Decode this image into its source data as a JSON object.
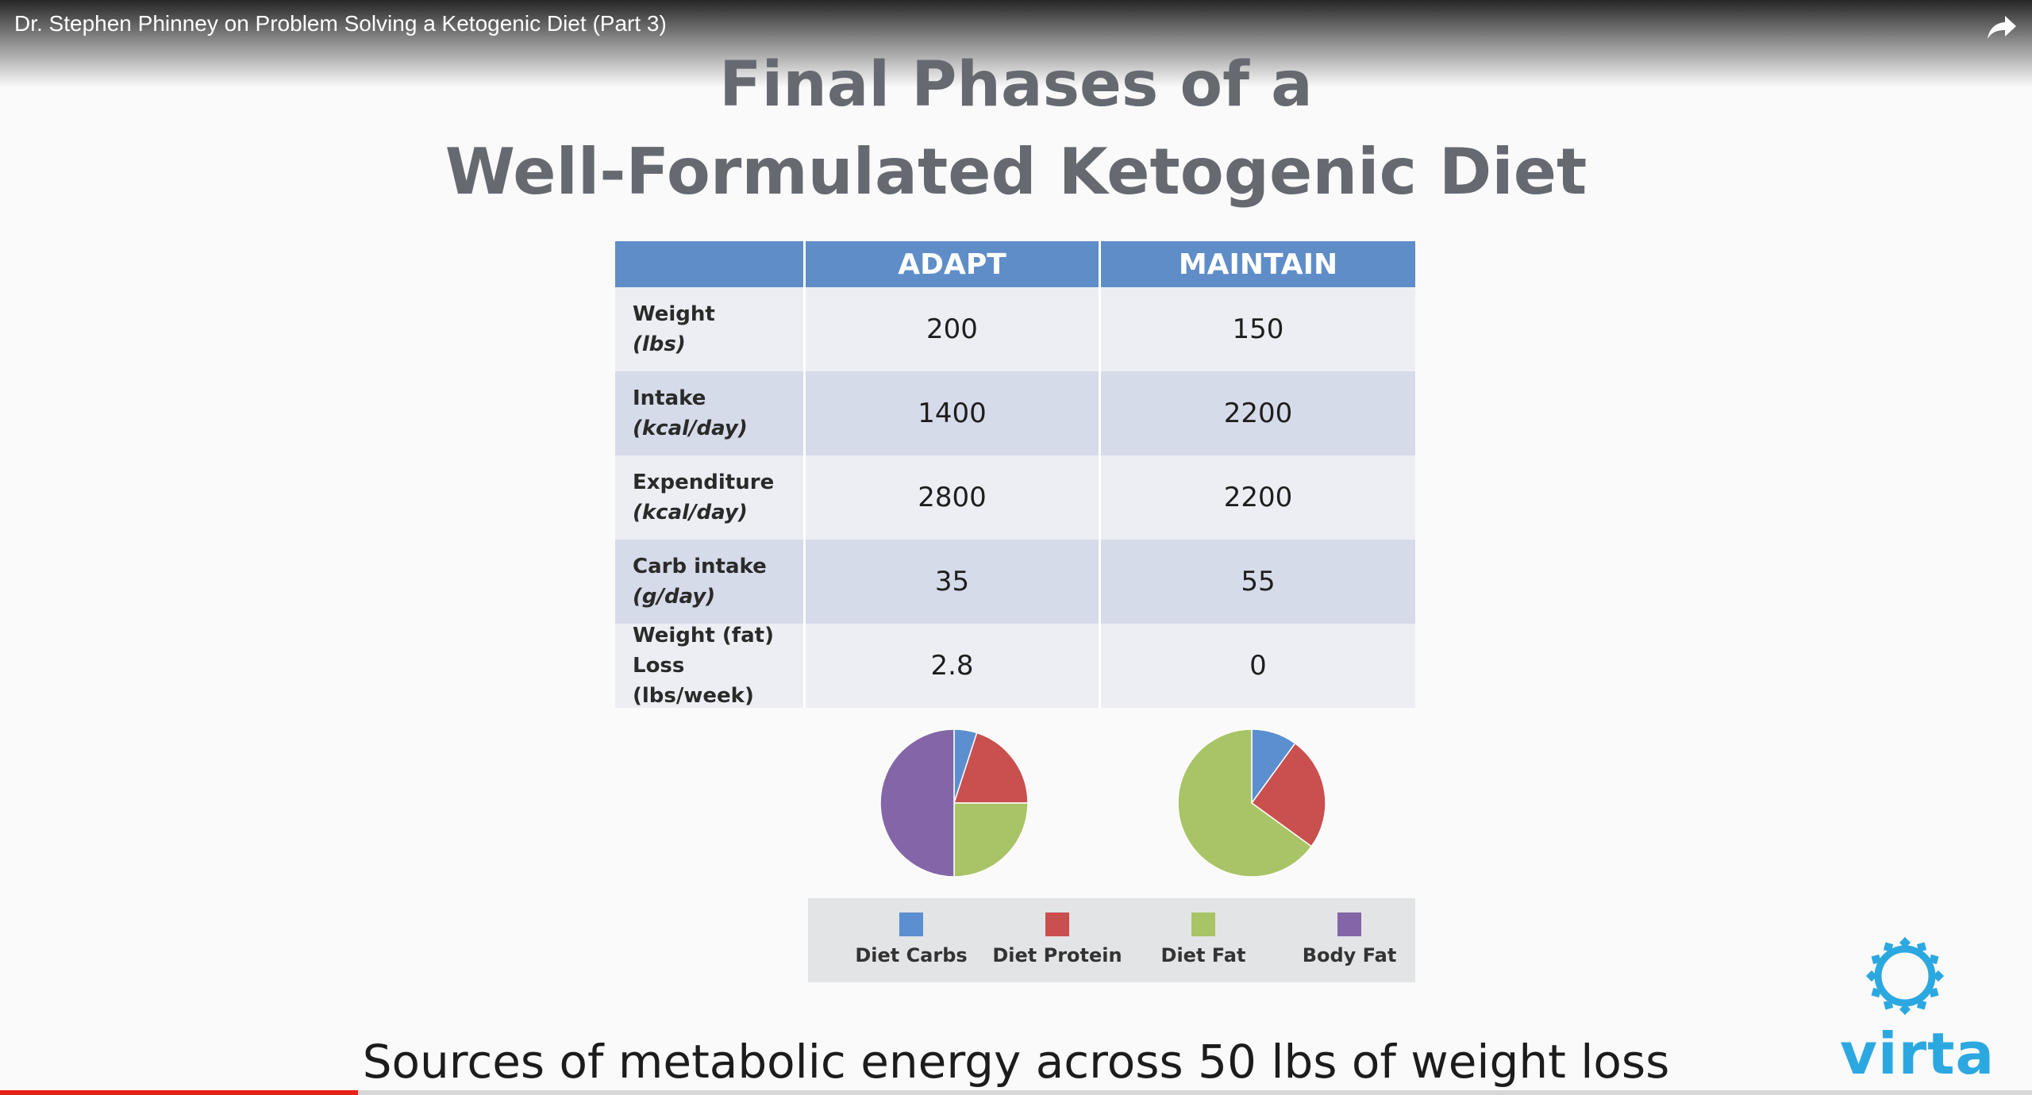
{
  "video": {
    "title": "Dr. Stephen Phinney on Problem Solving a Ketogenic Diet (Part 3)",
    "share_icon": "share-arrow-icon",
    "progress_fraction": 0.176
  },
  "slide": {
    "title_line1": "Final Phases of a",
    "title_line2": "Well-Formulated Ketogenic Diet",
    "subtitle": "Sources of metabolic energy across 50 lbs of weight loss",
    "logo_text": "virta",
    "logo_icon": "virta-gear-icon"
  },
  "table": {
    "columns": [
      "ADAPT",
      "MAINTAIN"
    ],
    "rows": [
      {
        "label": "Weight",
        "unit": "(lbs)",
        "adapt": "200",
        "maintain": "150"
      },
      {
        "label": "Intake",
        "unit": "(kcal/day)",
        "adapt": "1400",
        "maintain": "2200"
      },
      {
        "label": "Expenditure",
        "unit": "(kcal/day)",
        "adapt": "2800",
        "maintain": "2200"
      },
      {
        "label": "Carb intake",
        "unit": "(g/day)",
        "adapt": "35",
        "maintain": "55"
      },
      {
        "label": "Weight (fat)",
        "unit": "Loss (lbs/week)",
        "adapt": "2.8",
        "maintain": "0"
      }
    ]
  },
  "chart_data": [
    {
      "type": "pie",
      "categories": [
        "Diet Carbs",
        "Diet Protein",
        "Diet Fat",
        "Body Fat"
      ],
      "values": [
        5,
        20,
        25,
        50
      ],
      "colors": [
        "#5b8fd0",
        "#c9504f",
        "#a9c466",
        "#8466a8"
      ]
    },
    {
      "type": "pie",
      "categories": [
        "Diet Carbs",
        "Diet Protein",
        "Diet Fat"
      ],
      "values": [
        10,
        25,
        65
      ],
      "colors": [
        "#5b8fd0",
        "#c9504f",
        "#a9c466"
      ]
    }
  ],
  "legend": {
    "items": [
      {
        "label": "Diet Carbs",
        "color": "#5b8fd0"
      },
      {
        "label": "Diet Protein",
        "color": "#c9504f"
      },
      {
        "label": "Diet Fat",
        "color": "#a9c466"
      },
      {
        "label": "Body Fat",
        "color": "#8466a8"
      }
    ]
  }
}
